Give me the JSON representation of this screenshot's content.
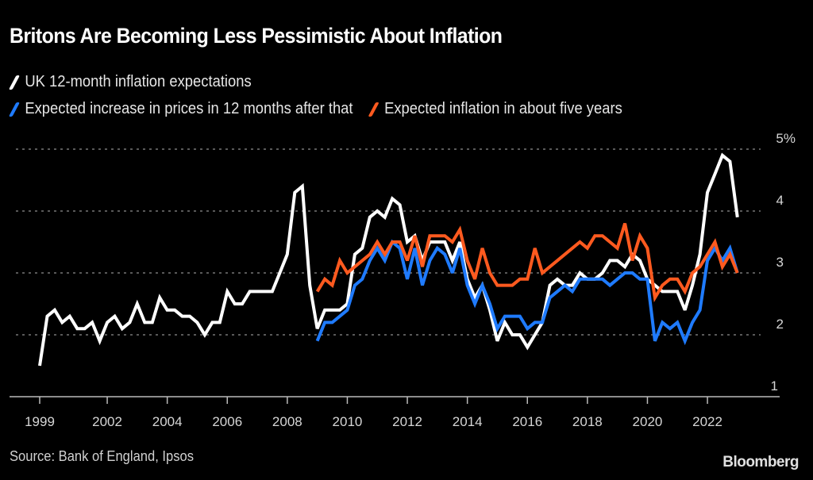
{
  "chart_data": {
    "type": "line",
    "title": "Britons Are Becoming Less Pessimistic About Inflation",
    "xlabel": "",
    "ylabel": "",
    "y_unit_label": "5%",
    "ylim": [
      1,
      5
    ],
    "xlim": [
      1999.75,
      2023.5
    ],
    "grid": true,
    "legend_placement": "top-left",
    "x_ticks": [
      {
        "label": "1999",
        "value": 1999.75
      },
      {
        "label": "2002",
        "value": 2002
      },
      {
        "label": "2004",
        "value": 2004
      },
      {
        "label": "2006",
        "value": 2006
      },
      {
        "label": "2008",
        "value": 2008
      },
      {
        "label": "2010",
        "value": 2010
      },
      {
        "label": "2012",
        "value": 2012
      },
      {
        "label": "2014",
        "value": 2014
      },
      {
        "label": "2016",
        "value": 2016
      },
      {
        "label": "2018",
        "value": 2018
      },
      {
        "label": "2020",
        "value": 2020
      },
      {
        "label": "2022",
        "value": 2022
      }
    ],
    "y_ticks": [
      {
        "label": "5%",
        "value": 5
      },
      {
        "label": "4",
        "value": 4
      },
      {
        "label": "3",
        "value": 3
      },
      {
        "label": "2",
        "value": 2
      },
      {
        "label": "1",
        "value": 1
      }
    ],
    "series": [
      {
        "name": "UK 12-month inflation expectations",
        "color": "#ffffff",
        "start": 1999.75,
        "step": 0.25,
        "values": [
          1.5,
          2.3,
          2.4,
          2.2,
          2.3,
          2.1,
          2.1,
          2.2,
          1.9,
          2.2,
          2.3,
          2.1,
          2.2,
          2.5,
          2.2,
          2.2,
          2.6,
          2.4,
          2.4,
          2.3,
          2.3,
          2.2,
          2.0,
          2.2,
          2.2,
          2.7,
          2.5,
          2.5,
          2.7,
          2.7,
          2.7,
          2.7,
          3.0,
          3.3,
          4.3,
          4.4,
          2.8,
          2.1,
          2.4,
          2.4,
          2.4,
          2.5,
          3.3,
          3.4,
          3.9,
          4.0,
          3.9,
          4.2,
          4.1,
          3.5,
          3.6,
          3.2,
          3.5,
          3.5,
          3.5,
          3.2,
          3.5,
          2.9,
          2.6,
          2.8,
          2.4,
          1.9,
          2.2,
          2.0,
          2.0,
          1.8,
          2.0,
          2.2,
          2.8,
          2.9,
          2.8,
          2.8,
          3.0,
          2.9,
          2.9,
          3.0,
          3.2,
          3.2,
          3.1,
          3.3,
          3.2,
          2.9,
          2.8,
          2.7,
          2.7,
          2.7,
          2.4,
          2.8,
          3.3,
          4.3,
          4.6,
          4.9,
          4.8,
          3.9
        ]
      },
      {
        "name": "Expected increase in prices in 12 months after that",
        "color": "#1f7bff",
        "start": 2009.0,
        "step": 0.25,
        "values": [
          1.9,
          2.2,
          2.2,
          2.3,
          2.4,
          2.8,
          2.9,
          3.2,
          3.4,
          3.2,
          3.5,
          3.4,
          2.9,
          3.4,
          2.8,
          3.2,
          3.4,
          3.3,
          3.0,
          3.4,
          2.8,
          2.5,
          2.8,
          2.5,
          2.1,
          2.3,
          2.3,
          2.3,
          2.1,
          2.2,
          2.2,
          2.6,
          2.7,
          2.8,
          2.7,
          2.9,
          2.9,
          2.9,
          2.9,
          2.8,
          2.9,
          3.0,
          3.0,
          2.9,
          2.9,
          1.9,
          2.2,
          2.1,
          2.2,
          1.9,
          2.2,
          2.4,
          3.2,
          3.4,
          3.2,
          3.4,
          3.0
        ]
      },
      {
        "name": "Expected inflation in about five years",
        "color": "#ff5a1f",
        "start": 2009.0,
        "step": 0.25,
        "values": [
          2.7,
          2.9,
          2.8,
          3.2,
          3.0,
          3.1,
          3.2,
          3.3,
          3.5,
          3.3,
          3.5,
          3.5,
          3.2,
          3.6,
          3.1,
          3.6,
          3.6,
          3.6,
          3.5,
          3.7,
          3.2,
          2.9,
          3.4,
          3.0,
          2.8,
          2.8,
          2.8,
          2.9,
          2.9,
          3.4,
          3.0,
          3.1,
          3.2,
          3.3,
          3.4,
          3.5,
          3.4,
          3.6,
          3.6,
          3.5,
          3.4,
          3.8,
          3.2,
          3.6,
          3.4,
          2.6,
          2.8,
          2.9,
          2.9,
          2.7,
          3.0,
          3.1,
          3.3,
          3.5,
          3.1,
          3.3,
          3.0
        ]
      }
    ]
  },
  "header": {
    "title": "Britons Are Becoming Less Pessimistic About Inflation"
  },
  "legend": [
    {
      "label": "UK 12-month inflation expectations",
      "color": "#ffffff"
    },
    {
      "label": "Expected increase in prices in 12 months after that",
      "color": "#1f7bff"
    },
    {
      "label": "Expected inflation in about five years",
      "color": "#ff5a1f"
    }
  ],
  "footer": {
    "source": "Source: Bank of England, Ipsos",
    "logo": "Bloomberg"
  }
}
